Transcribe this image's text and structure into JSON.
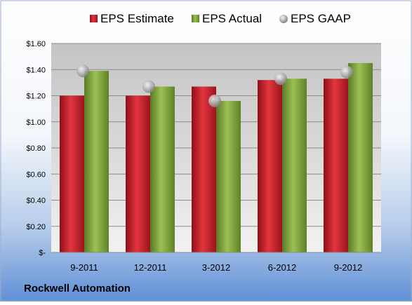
{
  "chart_data": {
    "type": "bar",
    "title": "",
    "xlabel": "",
    "ylabel": "",
    "company": "Rockwell Automation",
    "categories": [
      "9-2011",
      "12-2011",
      "3-2012",
      "6-2012",
      "9-2012"
    ],
    "series": [
      {
        "name": "EPS Estimate",
        "kind": "bar",
        "color": "#d01f2a",
        "values": [
          1.2,
          1.2,
          1.27,
          1.32,
          1.33
        ]
      },
      {
        "name": "EPS Actual",
        "kind": "bar",
        "color": "#7fa43a",
        "values": [
          1.39,
          1.27,
          1.16,
          1.33,
          1.45
        ]
      },
      {
        "name": "EPS GAAP",
        "kind": "marker",
        "color": "#a9a9a9",
        "values": [
          1.39,
          1.27,
          1.16,
          1.33,
          1.38
        ]
      }
    ],
    "ylim": [
      0,
      1.6
    ],
    "yticks": [
      {
        "value": 0,
        "label": "$-"
      },
      {
        "value": 0.2,
        "label": "$0.20"
      },
      {
        "value": 0.4,
        "label": "$0.40"
      },
      {
        "value": 0.6,
        "label": "$0.60"
      },
      {
        "value": 0.8,
        "label": "$0.80"
      },
      {
        "value": 1.0,
        "label": "$1.00"
      },
      {
        "value": 1.2,
        "label": "$1.20"
      },
      {
        "value": 1.4,
        "label": "$1.40"
      },
      {
        "value": 1.6,
        "label": "$1.60"
      }
    ],
    "grid": true,
    "legend_position": "top"
  }
}
